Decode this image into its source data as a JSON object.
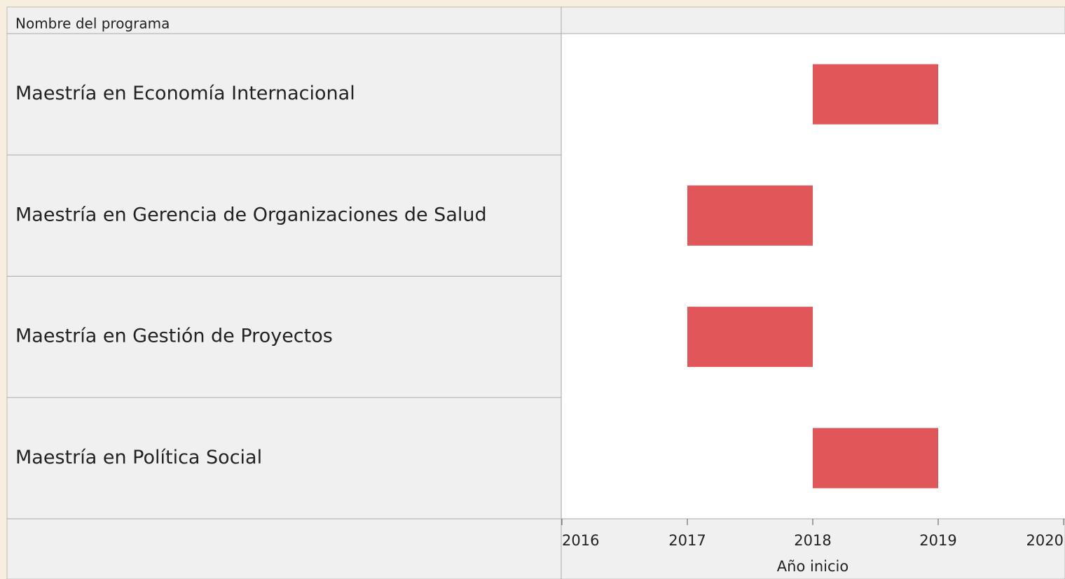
{
  "chart_data": {
    "type": "gantt",
    "header": "Nombre del programa",
    "categories": [
      "Maestría en Economía Internacional",
      "Maestría en Gerencia de Organizaciones de Salud",
      "Maestría en Gestión de Proyectos",
      "Maestría en Política Social"
    ],
    "start": [
      2018,
      2017,
      2017,
      2018
    ],
    "end": [
      2019,
      2018,
      2018,
      2019
    ],
    "color": "#e15759",
    "xlabel": "Año inicio",
    "xlim": [
      2016,
      2020
    ],
    "xticks": [
      2016,
      2017,
      2018,
      2019,
      2020
    ]
  }
}
